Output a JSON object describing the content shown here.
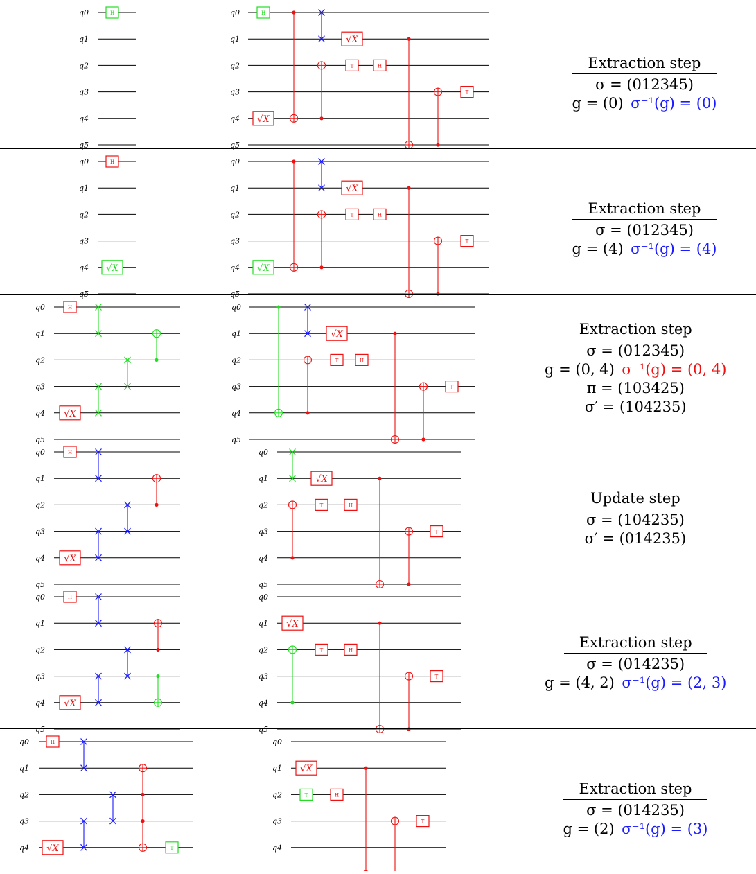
{
  "colors": {
    "red": "#ee1111",
    "green": "#22dd22",
    "blue": "#1a1aff",
    "wire": "#000000"
  },
  "qubit_labels": [
    "q0",
    "q1",
    "q2",
    "q3",
    "q4",
    "q5"
  ],
  "gate_labels": {
    "H": "H",
    "T": "T",
    "SX": "√X"
  },
  "rows": [
    {
      "info": {
        "title": "Extraction step",
        "lines": [
          {
            "text": "σ = (012345)"
          },
          {
            "text": "g = (0)",
            "extra": "σ⁻¹(g) = (0)",
            "extra_color": "blue"
          }
        ]
      },
      "circuits": [
        {
          "gates": [
            {
              "type": "H",
              "q": 0,
              "t": 0,
              "color": "green"
            }
          ]
        },
        {
          "gates": [
            {
              "type": "H",
              "q": 0,
              "t": 0,
              "color": "green"
            },
            {
              "type": "SX",
              "q": 4,
              "t": 0,
              "color": "red"
            },
            {
              "type": "CX",
              "c": 0,
              "tg": 4,
              "t": 1,
              "color": "red"
            },
            {
              "type": "CX",
              "c": 4,
              "tg": 2,
              "t": 2,
              "color": "red"
            },
            {
              "type": "SWAP",
              "a": 0,
              "b": 1,
              "t": 2,
              "color": "blue"
            },
            {
              "type": "SX",
              "q": 1,
              "t": 3,
              "color": "red"
            },
            {
              "type": "T",
              "q": 2,
              "t": 3,
              "color": "red"
            },
            {
              "type": "H",
              "q": 2,
              "t": 4,
              "color": "red"
            },
            {
              "type": "CX",
              "c": 1,
              "tg": 5,
              "t": 5,
              "color": "red"
            },
            {
              "type": "CX",
              "c": 5,
              "tg": 3,
              "t": 6,
              "color": "red"
            },
            {
              "type": "T",
              "q": 3,
              "t": 7,
              "color": "red"
            }
          ]
        }
      ]
    },
    {
      "info": {
        "title": "Extraction step",
        "lines": [
          {
            "text": "σ = (012345)"
          },
          {
            "text": "g = (4)",
            "extra": "σ⁻¹(g) = (4)",
            "extra_color": "blue"
          }
        ]
      },
      "circuits": [
        {
          "gates": [
            {
              "type": "H",
              "q": 0,
              "t": 0,
              "color": "red"
            },
            {
              "type": "SX",
              "q": 4,
              "t": 0,
              "color": "green"
            }
          ]
        },
        {
          "gates": [
            {
              "type": "SX",
              "q": 4,
              "t": 0,
              "color": "green"
            },
            {
              "type": "CX",
              "c": 0,
              "tg": 4,
              "t": 1,
              "color": "red"
            },
            {
              "type": "CX",
              "c": 4,
              "tg": 2,
              "t": 2,
              "color": "red"
            },
            {
              "type": "SWAP",
              "a": 0,
              "b": 1,
              "t": 2,
              "color": "blue"
            },
            {
              "type": "SX",
              "q": 1,
              "t": 3,
              "color": "red"
            },
            {
              "type": "T",
              "q": 2,
              "t": 3,
              "color": "red"
            },
            {
              "type": "H",
              "q": 2,
              "t": 4,
              "color": "red"
            },
            {
              "type": "CX",
              "c": 1,
              "tg": 5,
              "t": 5,
              "color": "red"
            },
            {
              "type": "CX",
              "c": 5,
              "tg": 3,
              "t": 6,
              "color": "red"
            },
            {
              "type": "T",
              "q": 3,
              "t": 7,
              "color": "red"
            }
          ]
        }
      ]
    },
    {
      "info": {
        "title": "Extraction step",
        "lines": [
          {
            "text": "σ = (012345)"
          },
          {
            "text": "g = (0, 4)",
            "extra": "σ⁻¹(g) = (0, 4)",
            "extra_color": "red"
          },
          {
            "text": "π = (103425)"
          },
          {
            "text": "σ′ = (104235)"
          }
        ]
      },
      "circuits": [
        {
          "gates": [
            {
              "type": "H",
              "q": 0,
              "t": 0,
              "color": "red"
            },
            {
              "type": "SX",
              "q": 4,
              "t": 0,
              "color": "red"
            },
            {
              "type": "SWAP",
              "a": 0,
              "b": 1,
              "t": 1,
              "color": "green"
            },
            {
              "type": "SWAP",
              "a": 3,
              "b": 4,
              "t": 1,
              "color": "green"
            },
            {
              "type": "SWAP",
              "a": 2,
              "b": 3,
              "t": 2,
              "color": "green"
            },
            {
              "type": "CX",
              "c": 2,
              "tg": 1,
              "t": 3,
              "color": "green"
            }
          ]
        },
        {
          "gates": [
            {
              "type": "CX",
              "c": 0,
              "tg": 4,
              "t": 0,
              "color": "green"
            },
            {
              "type": "CX",
              "c": 4,
              "tg": 2,
              "t": 1,
              "color": "red"
            },
            {
              "type": "SWAP",
              "a": 0,
              "b": 1,
              "t": 1,
              "color": "blue"
            },
            {
              "type": "SX",
              "q": 1,
              "t": 2,
              "color": "red"
            },
            {
              "type": "T",
              "q": 2,
              "t": 2,
              "color": "red"
            },
            {
              "type": "H",
              "q": 2,
              "t": 3,
              "color": "red"
            },
            {
              "type": "CX",
              "c": 1,
              "tg": 5,
              "t": 4,
              "color": "red"
            },
            {
              "type": "CX",
              "c": 5,
              "tg": 3,
              "t": 5,
              "color": "red"
            },
            {
              "type": "T",
              "q": 3,
              "t": 6,
              "color": "red"
            }
          ]
        }
      ]
    },
    {
      "info": {
        "title": "Update step",
        "lines": [
          {
            "text": "σ = (104235)"
          },
          {
            "text": "σ′ = (014235)"
          }
        ]
      },
      "circuits": [
        {
          "gates": [
            {
              "type": "H",
              "q": 0,
              "t": 0,
              "color": "red"
            },
            {
              "type": "SX",
              "q": 4,
              "t": 0,
              "color": "red"
            },
            {
              "type": "SWAP",
              "a": 0,
              "b": 1,
              "t": 1,
              "color": "blue"
            },
            {
              "type": "SWAP",
              "a": 3,
              "b": 4,
              "t": 1,
              "color": "blue"
            },
            {
              "type": "SWAP",
              "a": 2,
              "b": 3,
              "t": 2,
              "color": "blue"
            },
            {
              "type": "CX",
              "c": 2,
              "tg": 1,
              "t": 3,
              "color": "red"
            }
          ]
        },
        {
          "gates": [
            {
              "type": "SWAP",
              "a": 0,
              "b": 1,
              "t": 0,
              "color": "green"
            },
            {
              "type": "CX",
              "c": 4,
              "tg": 2,
              "t": 0,
              "color": "red"
            },
            {
              "type": "SX",
              "q": 1,
              "t": 1,
              "color": "red"
            },
            {
              "type": "T",
              "q": 2,
              "t": 1,
              "color": "red"
            },
            {
              "type": "H",
              "q": 2,
              "t": 2,
              "color": "red"
            },
            {
              "type": "CX",
              "c": 1,
              "tg": 5,
              "t": 3,
              "color": "red"
            },
            {
              "type": "CX",
              "c": 5,
              "tg": 3,
              "t": 4,
              "color": "red"
            },
            {
              "type": "T",
              "q": 3,
              "t": 5,
              "color": "red"
            }
          ]
        }
      ]
    },
    {
      "info": {
        "title": "Extraction step",
        "lines": [
          {
            "text": "σ = (014235)"
          },
          {
            "text": "g = (4, 2)",
            "extra": "σ⁻¹(g) = (2, 3)",
            "extra_color": "blue"
          }
        ]
      },
      "circuits": [
        {
          "gates": [
            {
              "type": "H",
              "q": 0,
              "t": 0,
              "color": "red"
            },
            {
              "type": "SX",
              "q": 4,
              "t": 0,
              "color": "red"
            },
            {
              "type": "SWAP",
              "a": 0,
              "b": 1,
              "t": 1,
              "color": "blue"
            },
            {
              "type": "SWAP",
              "a": 3,
              "b": 4,
              "t": 1,
              "color": "blue"
            },
            {
              "type": "SWAP",
              "a": 2,
              "b": 3,
              "t": 2,
              "color": "blue"
            },
            {
              "type": "CX",
              "c": 2,
              "tg": 1,
              "t": 3,
              "color": "red"
            },
            {
              "type": "CX",
              "c": 3,
              "tg": 4,
              "t": 3,
              "color": "green",
              "dx": 0
            }
          ]
        },
        {
          "gates": [
            {
              "type": "SX",
              "q": 1,
              "t": 0,
              "color": "red"
            },
            {
              "type": "CX",
              "c": 4,
              "tg": 2,
              "t": 0,
              "color": "green"
            },
            {
              "type": "T",
              "q": 2,
              "t": 1,
              "color": "red"
            },
            {
              "type": "H",
              "q": 2,
              "t": 2,
              "color": "red"
            },
            {
              "type": "CX",
              "c": 1,
              "tg": 5,
              "t": 3,
              "color": "red"
            },
            {
              "type": "CX",
              "c": 5,
              "tg": 3,
              "t": 4,
              "color": "red"
            },
            {
              "type": "T",
              "q": 3,
              "t": 5,
              "color": "red"
            }
          ]
        }
      ]
    },
    {
      "info": {
        "title": "Extraction step",
        "lines": [
          {
            "text": "σ = (014235)"
          },
          {
            "text": "g = (2)",
            "extra": "σ⁻¹(g) = (3)",
            "extra_color": "blue"
          }
        ]
      },
      "circuits": [
        {
          "gates": [
            {
              "type": "H",
              "q": 0,
              "t": 0,
              "color": "red"
            },
            {
              "type": "SX",
              "q": 4,
              "t": 0,
              "color": "red"
            },
            {
              "type": "SWAP",
              "a": 0,
              "b": 1,
              "t": 1,
              "color": "blue"
            },
            {
              "type": "SWAP",
              "a": 3,
              "b": 4,
              "t": 1,
              "color": "blue"
            },
            {
              "type": "SWAP",
              "a": 2,
              "b": 3,
              "t": 2,
              "color": "blue"
            },
            {
              "type": "CCX",
              "c": [
                2,
                3
              ],
              "tg": 1,
              "t": 3,
              "color": "red"
            },
            {
              "type": "CX",
              "c": 3,
              "tg": 4,
              "t": 3,
              "color": "red"
            },
            {
              "type": "T",
              "q": 4,
              "t": 4,
              "color": "green"
            }
          ]
        },
        {
          "gates": [
            {
              "type": "SX",
              "q": 1,
              "t": 0,
              "color": "red"
            },
            {
              "type": "T",
              "q": 2,
              "t": 0,
              "color": "green"
            },
            {
              "type": "H",
              "q": 2,
              "t": 1,
              "color": "red"
            },
            {
              "type": "CX",
              "c": 1,
              "tg": 5,
              "t": 2,
              "color": "red"
            },
            {
              "type": "CX",
              "c": 5,
              "tg": 3,
              "t": 3,
              "color": "red"
            },
            {
              "type": "T",
              "q": 3,
              "t": 4,
              "color": "red"
            }
          ]
        }
      ]
    }
  ]
}
